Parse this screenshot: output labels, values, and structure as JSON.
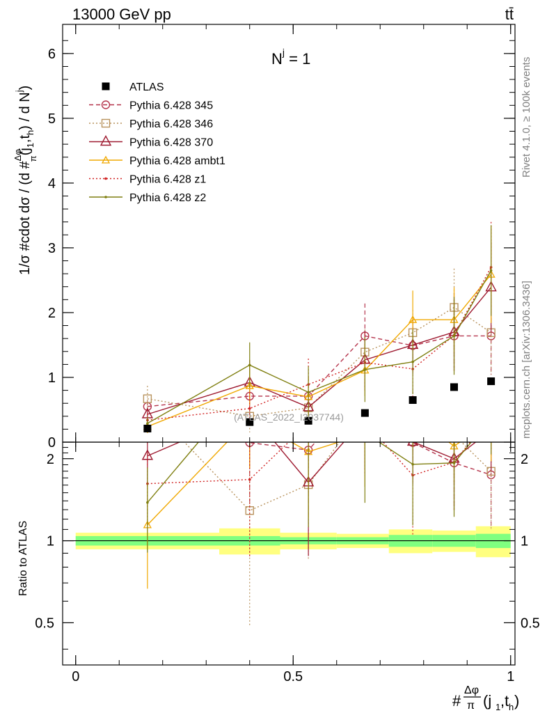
{
  "header": {
    "left": "13000 GeV pp",
    "right": "tt̄"
  },
  "side_labels": {
    "rivet": "Rivet 4.1.0, ≥ 100k events",
    "mcplots": "mcplots.cern.ch [arXiv:1306.3436]"
  },
  "watermark": "(ATLAS_2022_I2037744)",
  "annotation": "N^j = 1",
  "chart_data": {
    "type": "scatter",
    "title": "N^j = 1",
    "ylabel": "1/σ #cdot dσ / (d #Δφ/π(j1,th) / d Nj)",
    "xlabel": "#Δφ/π(j1,th)",
    "ratio_ylabel": "Ratio to ATLAS",
    "xlim": [
      -0.03,
      1.01
    ],
    "ylim": [
      0,
      6.45
    ],
    "ratio_ylim": [
      0.35,
      2.3
    ],
    "x_ticks": [
      "0",
      "0.5",
      "1"
    ],
    "x_tick_values": [
      0,
      0.5,
      1
    ],
    "y_ticks": [
      "0",
      "1",
      "2",
      "3",
      "4",
      "5",
      "6"
    ],
    "y_tick_values": [
      0,
      1,
      2,
      3,
      4,
      5,
      6
    ],
    "ratio_ticks": [
      "0.5",
      "1",
      "2"
    ],
    "ratio_tick_values": [
      0.5,
      1,
      2
    ],
    "x": [
      0.165,
      0.4,
      0.535,
      0.665,
      0.775,
      0.87,
      0.955
    ],
    "bin_edges": [
      0,
      0.33,
      0.47,
      0.6,
      0.72,
      0.82,
      0.92,
      1.0
    ],
    "data": {
      "name": "ATLAS",
      "color": "#000000",
      "values": [
        0.21,
        0.31,
        0.33,
        0.45,
        0.65,
        0.85,
        0.94
      ],
      "band_inner": [
        0.04,
        0.04,
        0.03,
        0.03,
        0.05,
        0.05,
        0.06
      ],
      "band_outer": [
        0.07,
        0.11,
        0.07,
        0.06,
        0.1,
        0.09,
        0.13
      ]
    },
    "series": [
      {
        "name": "Pythia 6.428 345",
        "color": "#b5334b",
        "dash": "6,4",
        "marker": "circle-open",
        "values": [
          0.55,
          0.71,
          0.71,
          1.64,
          1.49,
          1.64,
          1.64
        ],
        "errors": [
          0.08,
          0.3,
          0.3,
          0.5,
          0.4,
          0.5,
          0.6
        ]
      },
      {
        "name": "Pythia 6.428 346",
        "color": "#b8925c",
        "dash": "2,3",
        "marker": "square-open",
        "values": [
          0.67,
          0.4,
          0.53,
          1.39,
          1.69,
          2.08,
          1.69
        ],
        "errors": [
          0.2,
          0.25,
          0.25,
          0.35,
          0.35,
          0.6,
          0.65
        ]
      },
      {
        "name": "Pythia 6.428 370",
        "color": "#9e1a30",
        "dash": "",
        "marker": "triangle-open",
        "values": [
          0.43,
          0.92,
          0.54,
          1.27,
          1.5,
          1.7,
          2.39
        ],
        "errors": [
          0.1,
          0.35,
          0.25,
          0.45,
          0.45,
          0.6,
          0.7
        ]
      },
      {
        "name": "Pythia 6.428 ambt1",
        "color": "#f0a800",
        "dash": "",
        "marker": "triangle-small",
        "values": [
          0.24,
          0.87,
          0.7,
          1.11,
          1.89,
          1.89,
          2.59
        ],
        "errors": [
          0.1,
          0.3,
          0.3,
          0.4,
          0.45,
          0.5,
          0.75
        ]
      },
      {
        "name": "Pythia 6.428 z1",
        "color": "#d02020",
        "dash": "2,3",
        "marker": "dot",
        "values": [
          0.34,
          0.52,
          0.89,
          1.23,
          1.13,
          1.65,
          2.7
        ],
        "errors": [
          0.1,
          0.25,
          0.4,
          0.45,
          0.45,
          0.55,
          0.7
        ]
      },
      {
        "name": "Pythia 6.428 z2",
        "color": "#7f7f10",
        "dash": "",
        "marker": "dot",
        "values": [
          0.29,
          1.19,
          0.77,
          1.12,
          1.24,
          1.64,
          2.65
        ],
        "errors": [
          0.1,
          0.35,
          0.4,
          0.5,
          0.5,
          0.6,
          0.7
        ]
      }
    ]
  }
}
